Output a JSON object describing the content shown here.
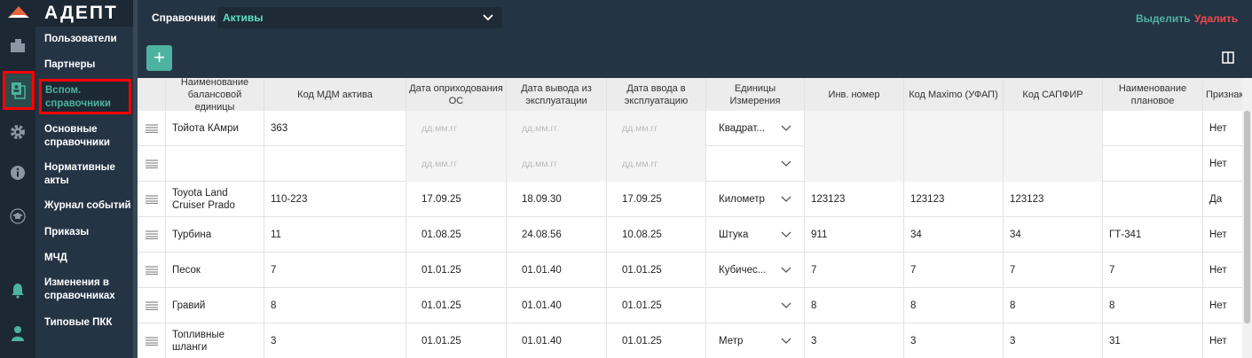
{
  "app": {
    "logo": "АДЕПТ"
  },
  "rail": {
    "icons": [
      "buildings-icon",
      "documents-icon",
      "gear-icon",
      "info-icon",
      "graduation-icon",
      "bell-icon",
      "user-icon"
    ],
    "accent": "#4db3a0"
  },
  "nav": {
    "items": [
      {
        "label": "Пользователи"
      },
      {
        "label": "Партнеры"
      },
      {
        "label": "Вспом. справочники",
        "active": true
      },
      {
        "label": "Основные справочники"
      },
      {
        "label": "Нормативные акты"
      },
      {
        "label": "Журнал событий"
      },
      {
        "label": "Приказы"
      },
      {
        "label": "МЧД"
      },
      {
        "label": "Изменения в справочниках"
      },
      {
        "label": "Типовые ПКК"
      }
    ]
  },
  "toolbar": {
    "directory_label": "Справочник",
    "directory_value": "Активы",
    "select_label": "Выделить",
    "delete_label": "Удалить",
    "add_label": "+"
  },
  "table": {
    "columns": [
      "",
      "Наименование балансовой единицы",
      "Код МДМ актива",
      "Дата оприходования ОС",
      "Дата вывода из эксплуатации",
      "Дата ввода в эксплуатацию",
      "Единицы Измерения",
      "Инв. номер",
      "Код Maximo (УФАП)",
      "Код САПФИР",
      "Наименование плановое",
      "Признак"
    ],
    "date_placeholder": "дд.мм.гг",
    "rows": [
      [
        "Тойота КАмри",
        "363",
        "",
        "",
        "",
        "Квадрат...",
        "",
        "",
        "",
        "",
        "Нет"
      ],
      [
        "",
        "",
        "",
        "",
        "",
        "",
        "",
        "",
        "",
        "",
        "Нет"
      ],
      [
        "Toyota Land Cruiser Prado",
        "110-223",
        "17.09.25",
        "18.09.30",
        "17.09.25",
        "Километр",
        "123123",
        "123123",
        "123123",
        "",
        "Да"
      ],
      [
        "Турбина",
        "11",
        "01.08.25",
        "24.08.56",
        "10.08.25",
        "Штука",
        "911",
        "34",
        "34",
        "ГТ-341",
        "Нет"
      ],
      [
        "Песок",
        "7",
        "01.01.25",
        "01.01.40",
        "01.01.25",
        "Кубичес...",
        "7",
        "7",
        "7",
        "7",
        "Нет"
      ],
      [
        "Гравий",
        "8",
        "01.01.25",
        "01.01.40",
        "01.01.25",
        "",
        "8",
        "8",
        "8",
        "8",
        "Нет"
      ],
      [
        "Топливные шланги",
        "3",
        "01.01.25",
        "01.01.40",
        "01.01.25",
        "Метр",
        "3",
        "3",
        "3",
        "31",
        "Нет"
      ]
    ]
  }
}
